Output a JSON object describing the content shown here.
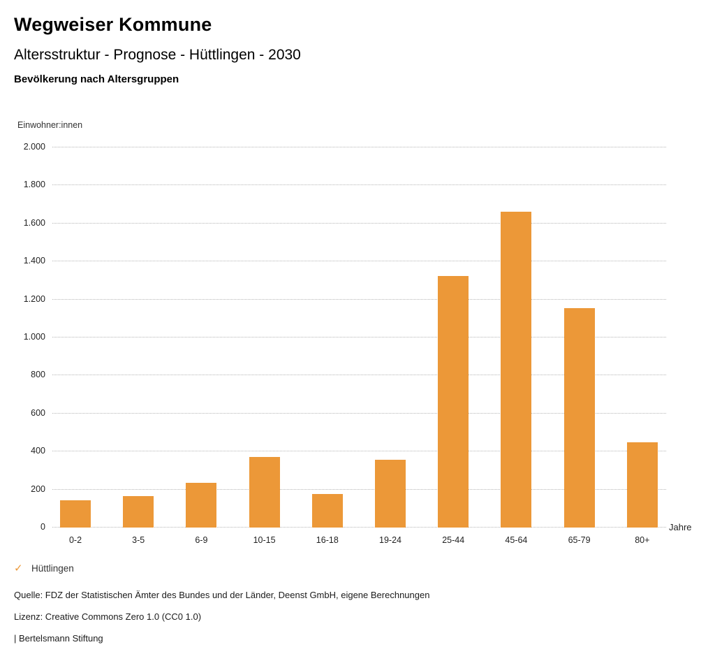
{
  "header": {
    "title": "Wegweiser Kommune",
    "subtitle": "Altersstruktur - Prognose - Hüttlingen - 2030",
    "chart_heading": "Bevölkerung nach Altersgruppen"
  },
  "colors": {
    "bar": "#EC9838",
    "gridline": "#b5b5b5",
    "title_text": "#000000",
    "axis_text": "#222222"
  },
  "chart_data": {
    "type": "bar",
    "title": "Bevölkerung nach Altersgruppen",
    "xlabel": "Jahre",
    "ylabel": "Einwohner:innen",
    "categories": [
      "0-2",
      "3-5",
      "6-9",
      "10-15",
      "16-18",
      "19-24",
      "25-44",
      "45-64",
      "65-79",
      "80+"
    ],
    "series": [
      {
        "name": "Hüttlingen",
        "values": [
          145,
          165,
          235,
          370,
          175,
          355,
          1325,
          1660,
          1155,
          450
        ]
      }
    ],
    "ylim": [
      0,
      2000
    ],
    "yticks": {
      "values": [
        0,
        200,
        400,
        600,
        800,
        1000,
        1200,
        1400,
        1600,
        1800,
        2000
      ],
      "labels": [
        "0",
        "200",
        "400",
        "600",
        "800",
        "1.000",
        "1.200",
        "1.400",
        "1.600",
        "1.800",
        "2.000"
      ]
    },
    "grid": "horizontal-dotted",
    "legend_position": "bottom-left"
  },
  "legend": {
    "check_icon": "✓",
    "label": "Hüttlingen"
  },
  "footer": {
    "source": "Quelle: FDZ der Statistischen Ämter des Bundes und der Länder, Deenst GmbH, eigene Berechnungen",
    "license": "Lizenz: Creative Commons Zero 1.0 (CC0 1.0)",
    "attribution": "| Bertelsmann Stiftung"
  }
}
